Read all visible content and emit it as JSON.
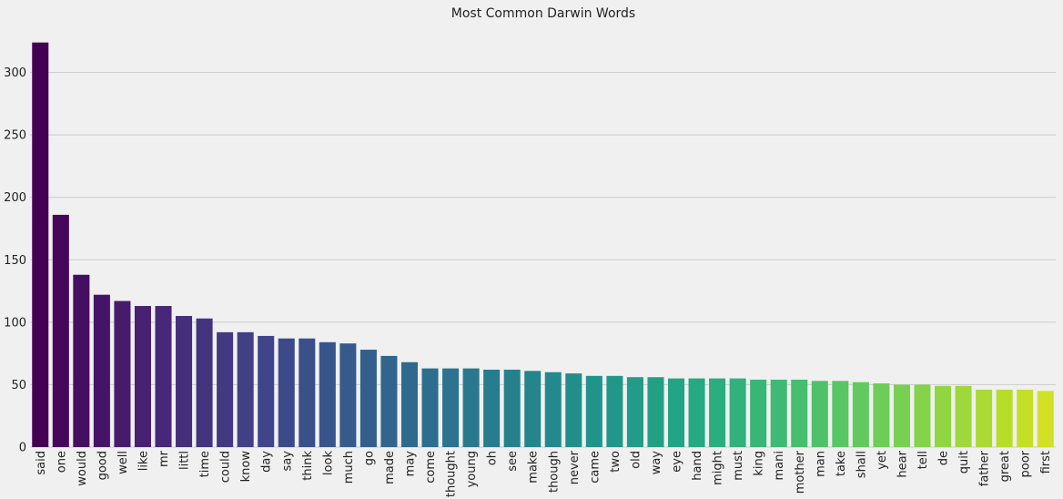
{
  "chart_data": {
    "type": "bar",
    "title": "Most Common Darwin Words",
    "xlabel": "",
    "ylabel": "",
    "ylim": [
      0,
      330
    ],
    "yticks": [
      0,
      50,
      100,
      150,
      200,
      250,
      300
    ],
    "grid": "horizontal",
    "legend": "none",
    "colormap": "viridis",
    "categories": [
      "said",
      "one",
      "would",
      "good",
      "well",
      "like",
      "mr",
      "littl",
      "time",
      "could",
      "know",
      "day",
      "say",
      "think",
      "look",
      "much",
      "go",
      "made",
      "may",
      "come",
      "thought",
      "young",
      "oh",
      "see",
      "make",
      "though",
      "never",
      "came",
      "two",
      "old",
      "way",
      "eye",
      "hand",
      "might",
      "must",
      "king",
      "mani",
      "mother",
      "man",
      "take",
      "shall",
      "yet",
      "hear",
      "tell",
      "de",
      "quit",
      "father",
      "great",
      "poor",
      "first"
    ],
    "values": [
      324,
      186,
      138,
      122,
      117,
      113,
      113,
      105,
      103,
      92,
      92,
      89,
      87,
      87,
      84,
      83,
      78,
      73,
      68,
      63,
      63,
      63,
      62,
      62,
      61,
      60,
      59,
      57,
      57,
      56,
      56,
      55,
      55,
      55,
      55,
      54,
      54,
      54,
      53,
      53,
      52,
      51,
      50,
      50,
      49,
      49,
      46,
      46,
      46,
      45
    ]
  }
}
